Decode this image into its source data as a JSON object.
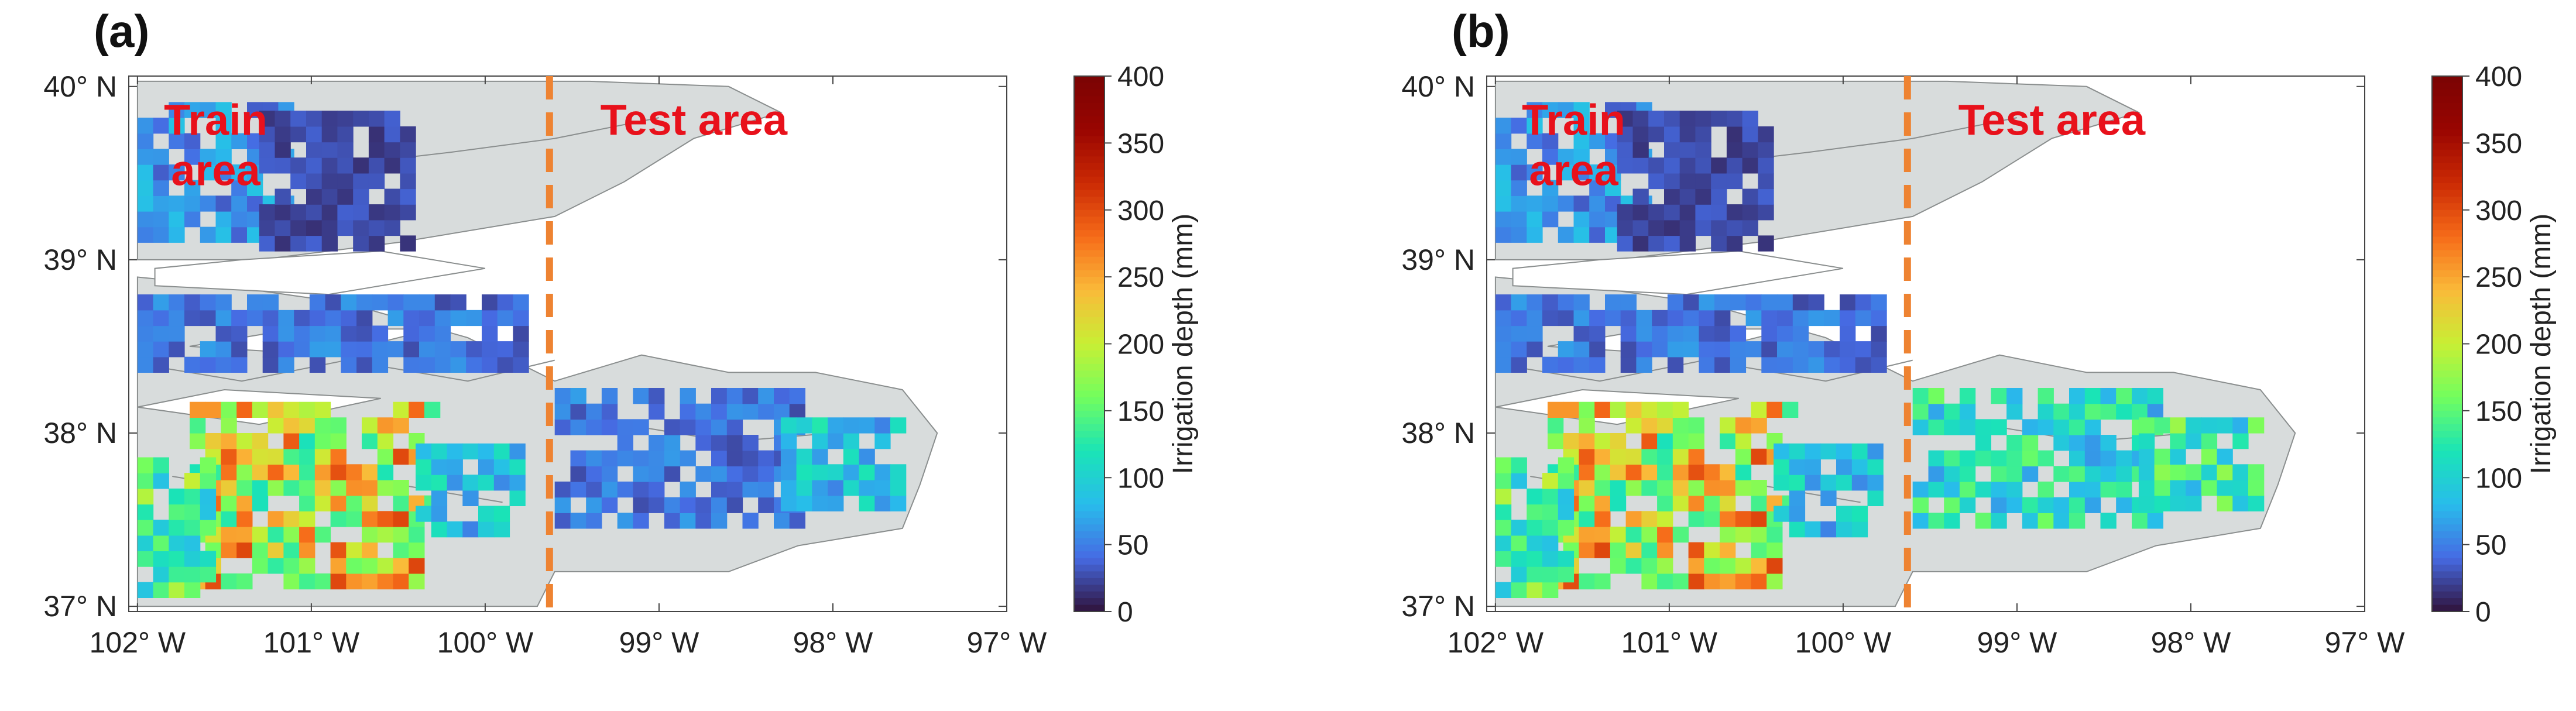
{
  "colors": {
    "land": "#d8dcdc",
    "land_edge": "#8a8e8e",
    "divider": "#ee8332",
    "annotation": "#e8111b",
    "axis": "#222222"
  },
  "chart_data": [
    {
      "type": "heatmap",
      "panel_label": "(a)",
      "title": "",
      "xlabel": "",
      "ylabel": "",
      "xlim": [
        -102.05,
        -97.0
      ],
      "ylim": [
        36.97,
        40.06
      ],
      "x_ticks": [
        -102,
        -101,
        -100,
        -99,
        -98,
        -97
      ],
      "x_tick_labels": [
        "102° W",
        "101° W",
        "100° W",
        "99° W",
        "98° W",
        "97° W"
      ],
      "y_ticks": [
        37,
        38,
        39,
        40
      ],
      "y_tick_labels": [
        "37° N",
        "38° N",
        "39° N",
        "40° N"
      ],
      "colorbar": {
        "label": "Irrigation depth (mm)",
        "range": [
          0,
          400
        ],
        "ticks": [
          0,
          50,
          100,
          150,
          200,
          250,
          300,
          350,
          400
        ],
        "tick_labels": [
          "0",
          "50",
          "100",
          "150",
          "200",
          "250",
          "300",
          "350",
          "400"
        ],
        "colormap": "turbo"
      },
      "divider_longitude": -99.63,
      "annotations": [
        {
          "text": "Train",
          "lon": -101.55,
          "lat": 39.72
        },
        {
          "text": "area",
          "lon": -101.55,
          "lat": 39.43
        },
        {
          "text": "Test area",
          "lon": -98.8,
          "lat": 39.72
        }
      ],
      "zones": [
        {
          "region": "northwest train",
          "lon": [
            -102.0,
            -101.1
          ],
          "lat": [
            39.1,
            39.85
          ],
          "mean_mm": 60
        },
        {
          "region": "north central train",
          "lon": [
            -101.3,
            -100.4
          ],
          "lat": [
            39.05,
            39.8
          ],
          "mean_mm": 25
        },
        {
          "region": "middle band train",
          "lon": [
            -102.0,
            -99.8
          ],
          "lat": [
            38.35,
            38.8
          ],
          "mean_mm": 45
        },
        {
          "region": "south train core",
          "lon": [
            -101.7,
            -100.3
          ],
          "lat": [
            37.1,
            38.1
          ],
          "mean_mm": 210
        },
        {
          "region": "south train west",
          "lon": [
            -102.0,
            -101.6
          ],
          "lat": [
            37.05,
            37.8
          ],
          "mean_mm": 140
        },
        {
          "region": "south train east",
          "lon": [
            -100.4,
            -99.8
          ],
          "lat": [
            37.4,
            37.9
          ],
          "mean_mm": 90
        },
        {
          "region": "east test",
          "lon": [
            -99.6,
            -98.2
          ],
          "lat": [
            37.45,
            38.25
          ],
          "mean_mm": 45
        },
        {
          "region": "far east test",
          "lon": [
            -98.3,
            -97.6
          ],
          "lat": [
            37.55,
            38.05
          ],
          "mean_mm": 90
        }
      ]
    },
    {
      "type": "heatmap",
      "panel_label": "(b)",
      "title": "",
      "xlabel": "",
      "ylabel": "",
      "xlim": [
        -102.05,
        -97.0
      ],
      "ylim": [
        36.97,
        40.06
      ],
      "x_ticks": [
        -102,
        -101,
        -100,
        -99,
        -98,
        -97
      ],
      "x_tick_labels": [
        "102° W",
        "101° W",
        "100° W",
        "99° W",
        "98° W",
        "97° W"
      ],
      "y_ticks": [
        37,
        38,
        39,
        40
      ],
      "y_tick_labels": [
        "37° N",
        "38° N",
        "39° N",
        "40° N"
      ],
      "colorbar": {
        "label": "Irrigation depth (mm)",
        "range": [
          0,
          400
        ],
        "ticks": [
          0,
          50,
          100,
          150,
          200,
          250,
          300,
          350,
          400
        ],
        "tick_labels": [
          "0",
          "50",
          "100",
          "150",
          "200",
          "250",
          "300",
          "350",
          "400"
        ],
        "colormap": "turbo"
      },
      "divider_longitude": -99.63,
      "annotations": [
        {
          "text": "Train",
          "lon": -101.55,
          "lat": 39.72
        },
        {
          "text": "area",
          "lon": -101.55,
          "lat": 39.43
        },
        {
          "text": "Test area",
          "lon": -98.8,
          "lat": 39.72
        }
      ],
      "zones": [
        {
          "region": "northwest train",
          "lon": [
            -102.0,
            -101.1
          ],
          "lat": [
            39.1,
            39.85
          ],
          "mean_mm": 60
        },
        {
          "region": "north central train",
          "lon": [
            -101.3,
            -100.4
          ],
          "lat": [
            39.05,
            39.8
          ],
          "mean_mm": 25
        },
        {
          "region": "middle band train",
          "lon": [
            -102.0,
            -99.8
          ],
          "lat": [
            38.35,
            38.8
          ],
          "mean_mm": 45
        },
        {
          "region": "south train core",
          "lon": [
            -101.7,
            -100.3
          ],
          "lat": [
            37.1,
            38.1
          ],
          "mean_mm": 210
        },
        {
          "region": "south train west",
          "lon": [
            -102.0,
            -101.6
          ],
          "lat": [
            37.05,
            37.8
          ],
          "mean_mm": 140
        },
        {
          "region": "south train east",
          "lon": [
            -100.4,
            -99.8
          ],
          "lat": [
            37.4,
            37.9
          ],
          "mean_mm": 90
        },
        {
          "region": "east test",
          "lon": [
            -99.6,
            -98.2
          ],
          "lat": [
            37.45,
            38.25
          ],
          "mean_mm": 110
        },
        {
          "region": "far east test",
          "lon": [
            -98.3,
            -97.6
          ],
          "lat": [
            37.55,
            38.05
          ],
          "mean_mm": 130
        }
      ]
    }
  ]
}
